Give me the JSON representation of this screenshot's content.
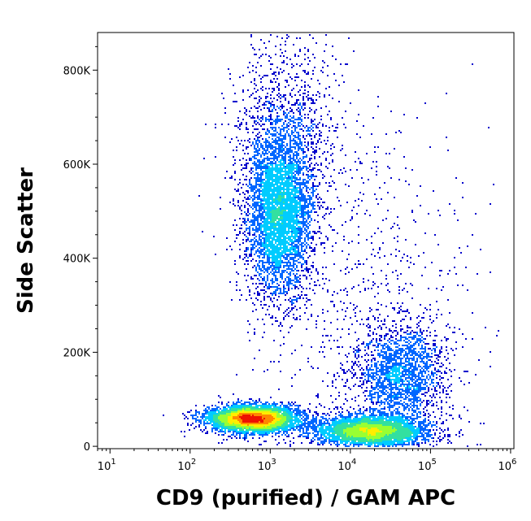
{
  "chart_data": {
    "type": "scatter",
    "subtype": "flow-cytometry-density-dot-plot",
    "xlabel": "CD9 (purified) / GAM APC",
    "ylabel": "Side Scatter",
    "x_scale": "log",
    "x_range": [
      7,
      1100000
    ],
    "y_scale": "linear",
    "y_range": [
      -5000,
      880000
    ],
    "x_ticks": [
      {
        "value": 10,
        "base": "10",
        "exp": "1"
      },
      {
        "value": 100,
        "base": "10",
        "exp": "2"
      },
      {
        "value": 1000,
        "base": "10",
        "exp": "3"
      },
      {
        "value": 10000,
        "base": "10",
        "exp": "4"
      },
      {
        "value": 100000,
        "base": "10",
        "exp": "5"
      },
      {
        "value": 1000000,
        "base": "10",
        "exp": "6"
      }
    ],
    "y_ticks": [
      {
        "value": 0,
        "label": "0"
      },
      {
        "value": 200000,
        "label": "200K"
      },
      {
        "value": 400000,
        "label": "400K"
      },
      {
        "value": 600000,
        "label": "600K"
      },
      {
        "value": 800000,
        "label": "800K"
      }
    ],
    "populations": [
      {
        "log10_x_center": 2.78,
        "y_center": 60000,
        "log10_x_spread": 0.28,
        "y_spread": 14000,
        "events": 5200
      },
      {
        "log10_x_center": 4.25,
        "y_center": 35000,
        "log10_x_spread": 0.35,
        "y_spread": 16000,
        "events": 3800
      },
      {
        "log10_x_center": 4.6,
        "y_center": 150000,
        "log10_x_spread": 0.28,
        "y_spread": 55000,
        "events": 2100
      },
      {
        "log10_x_center": 3.1,
        "y_center": 500000,
        "log10_x_spread": 0.2,
        "y_spread": 90000,
        "events": 4600
      },
      {
        "log10_x_center": 3.2,
        "y_center": 650000,
        "log10_x_spread": 0.35,
        "y_spread": 120000,
        "events": 1200
      },
      {
        "log10_x_center": 4.2,
        "y_center": 300000,
        "log10_x_spread": 0.7,
        "y_spread": 200000,
        "events": 700
      }
    ],
    "color_scale": [
      "#0000cc",
      "#0066ff",
      "#00ccff",
      "#33e0a0",
      "#99ff33",
      "#ffee00",
      "#ff8800",
      "#ee1100"
    ],
    "grid": false,
    "legend": "none"
  }
}
